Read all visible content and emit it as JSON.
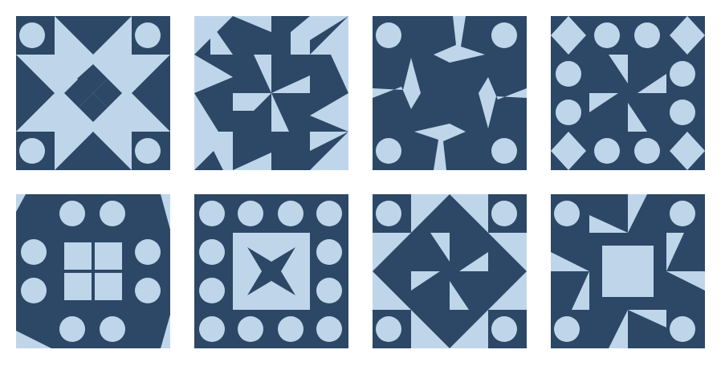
{
  "colors": {
    "dark": "#2c4866",
    "light": "#bfd6ea",
    "background": "#ffffff"
  },
  "tiles": [
    {
      "pattern": "diamond-in-square-with-four-small-diamonds"
    },
    {
      "pattern": "pinwheel-triangles"
    },
    {
      "pattern": "four-arrows-rotating"
    },
    {
      "pattern": "diamond-corners-circles-small-pinwheel"
    },
    {
      "pattern": "octagon-circles-four-squares"
    },
    {
      "pattern": "circle-border-four-point-star"
    },
    {
      "pattern": "diamond-in-square-small-pinwheel"
    },
    {
      "pattern": "central-square-pinwheel-circles"
    }
  ]
}
